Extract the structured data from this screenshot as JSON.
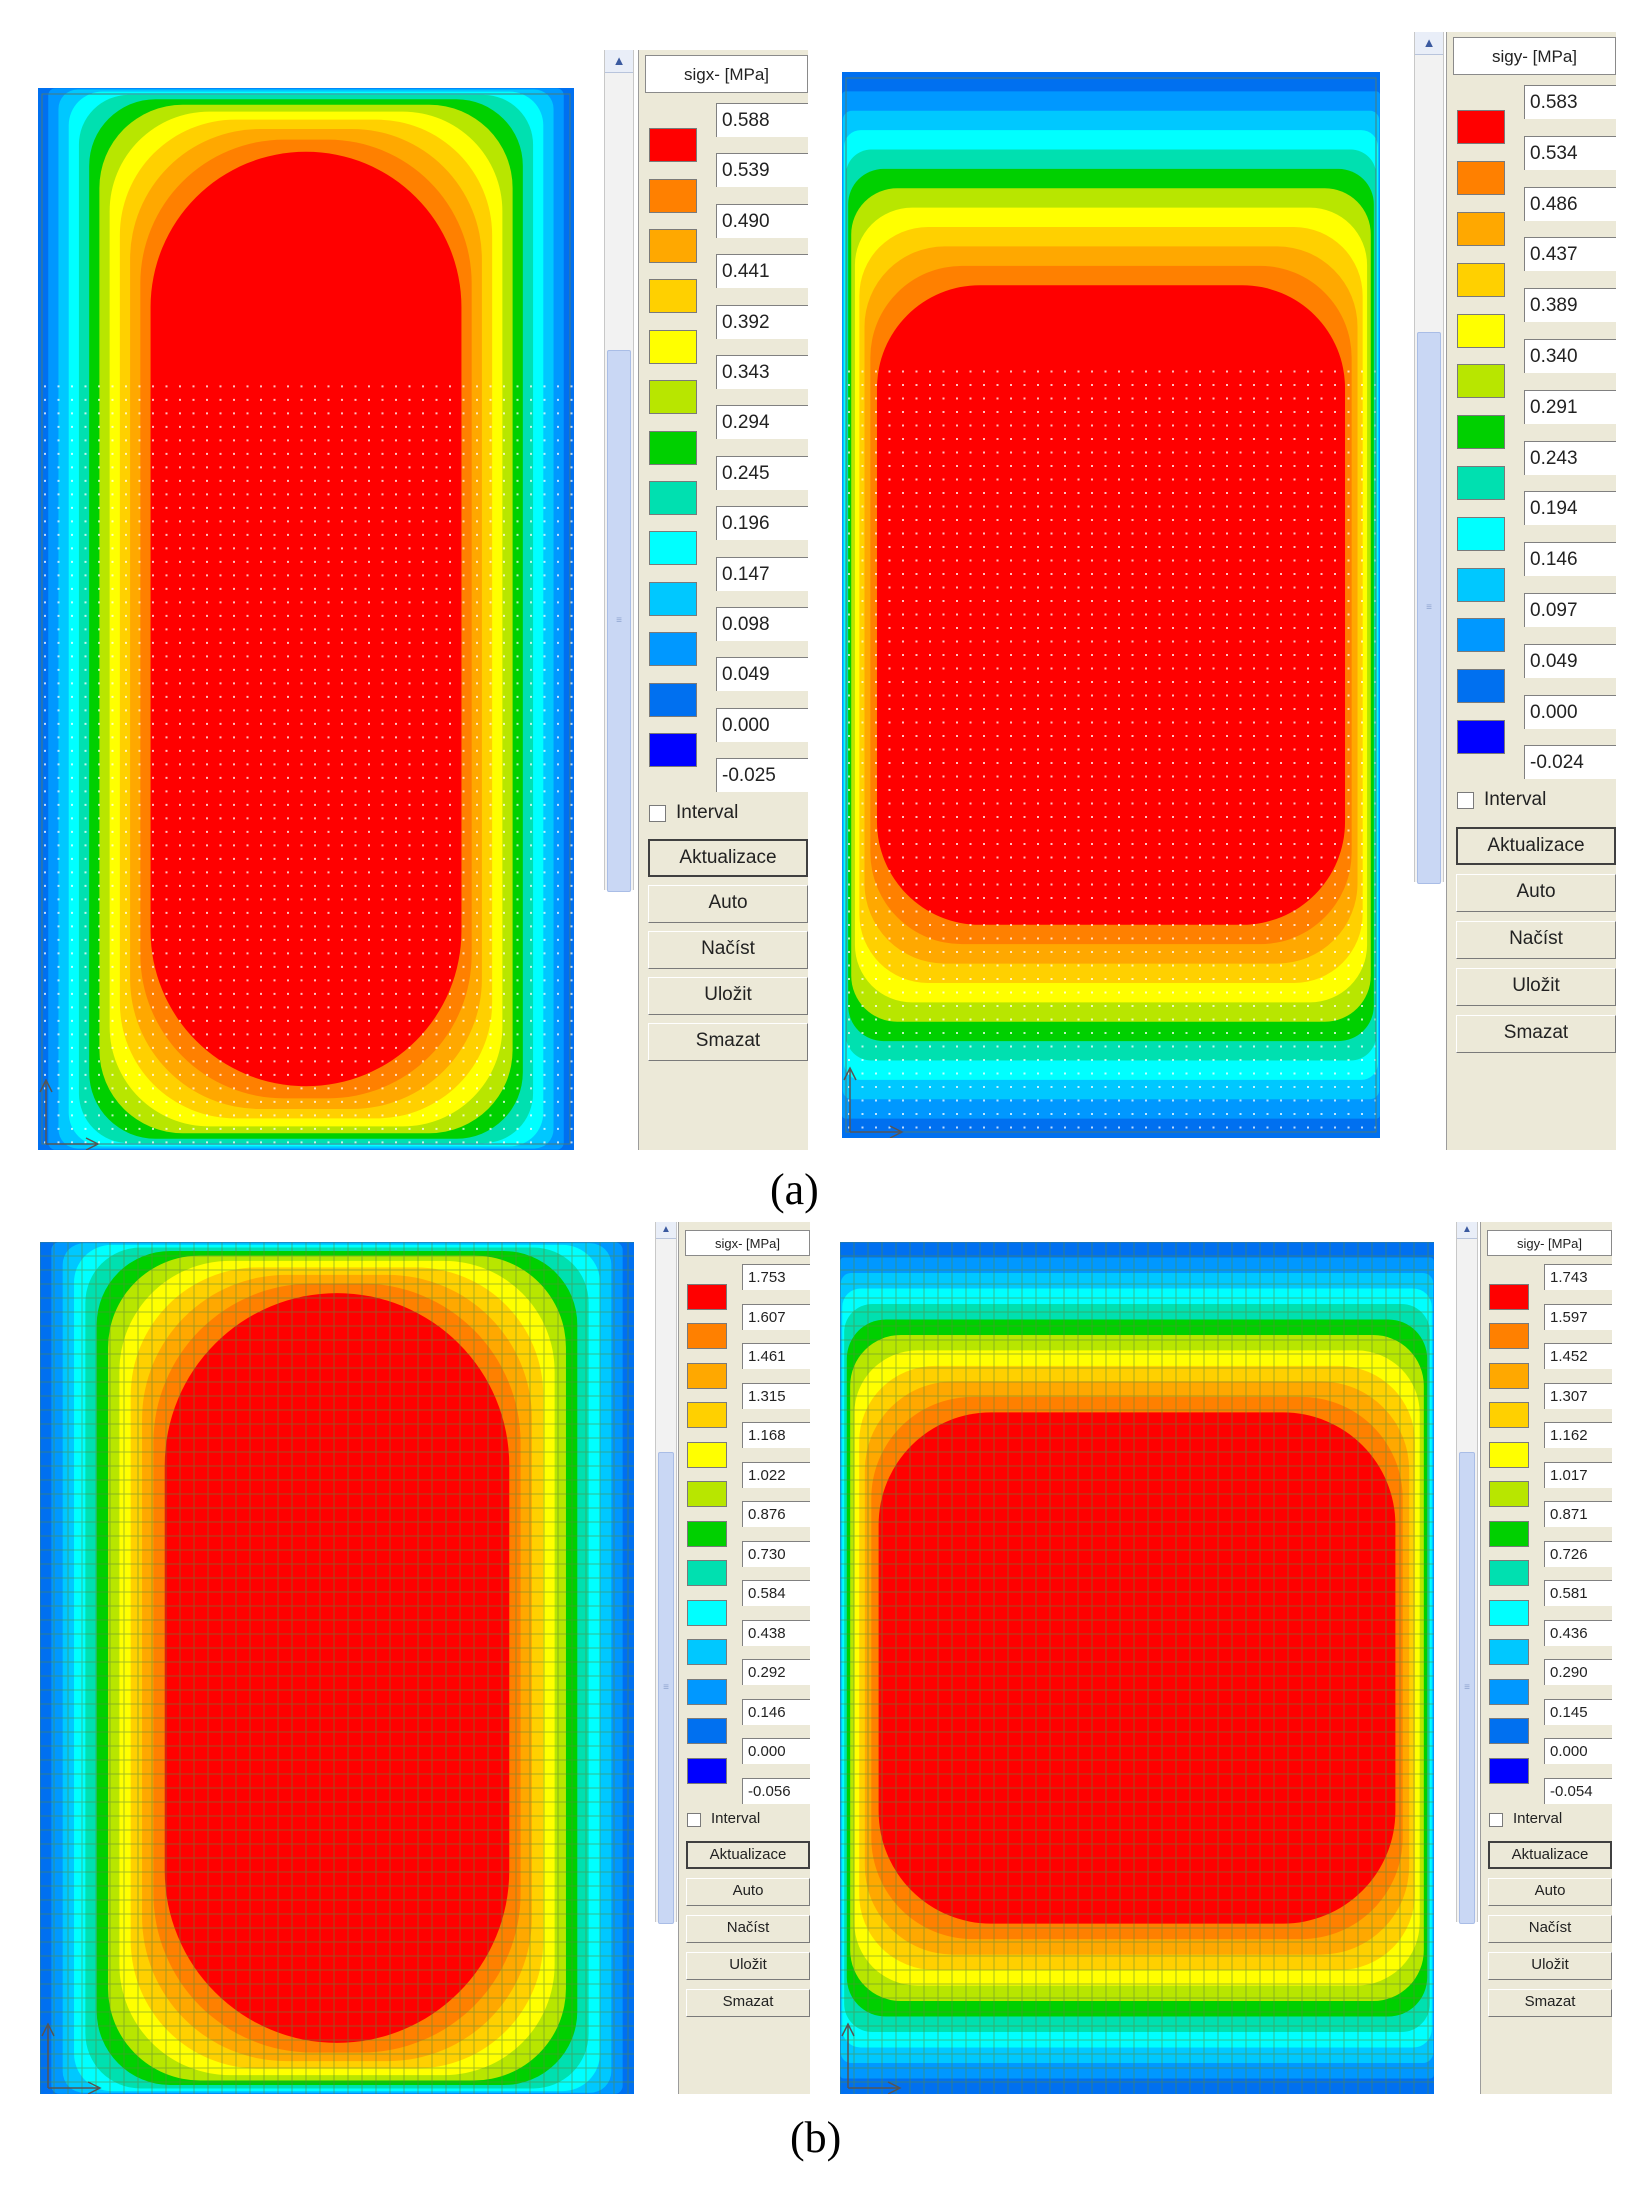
{
  "colors": {
    "scale": [
      "#ff0000",
      "#ff8000",
      "#ffa800",
      "#ffd000",
      "#ffff00",
      "#b8e600",
      "#00d000",
      "#00e0b0",
      "#00ffff",
      "#00c8ff",
      "#0098ff",
      "#0070f0",
      "#0000ff"
    ]
  },
  "panels": [
    {
      "id": "a-left",
      "orientation": "x",
      "mesh": "dots",
      "legend": {
        "header": "sigx- [MPa]",
        "values": [
          "0.588",
          "0.539",
          "0.490",
          "0.441",
          "0.392",
          "0.343",
          "0.294",
          "0.245",
          "0.196",
          "0.147",
          "0.098",
          "0.049",
          "0.000",
          "-0.025"
        ],
        "interval_label": "Interval",
        "buttons": [
          "Aktualizace",
          "Auto",
          "Načíst",
          "Uložit",
          "Smazat"
        ]
      }
    },
    {
      "id": "a-right",
      "orientation": "y",
      "mesh": "dots",
      "legend": {
        "header": "sigy- [MPa]",
        "values": [
          "0.583",
          "0.534",
          "0.486",
          "0.437",
          "0.389",
          "0.340",
          "0.291",
          "0.243",
          "0.194",
          "0.146",
          "0.097",
          "0.049",
          "0.000",
          "-0.024"
        ],
        "interval_label": "Interval",
        "buttons": [
          "Aktualizace",
          "Auto",
          "Načíst",
          "Uložit",
          "Smazat"
        ]
      }
    },
    {
      "id": "b-left",
      "orientation": "x",
      "mesh": "grid",
      "legend": {
        "header": "sigx- [MPa]",
        "values": [
          "1.753",
          "1.607",
          "1.461",
          "1.315",
          "1.168",
          "1.022",
          "0.876",
          "0.730",
          "0.584",
          "0.438",
          "0.292",
          "0.146",
          "0.000",
          "-0.056"
        ],
        "interval_label": "Interval",
        "buttons": [
          "Aktualizace",
          "Auto",
          "Načíst",
          "Uložit",
          "Smazat"
        ]
      }
    },
    {
      "id": "b-right",
      "orientation": "y",
      "mesh": "grid",
      "legend": {
        "header": "sigy- [MPa]",
        "values": [
          "1.743",
          "1.597",
          "1.452",
          "1.307",
          "1.162",
          "1.017",
          "0.871",
          "0.726",
          "0.581",
          "0.436",
          "0.290",
          "0.145",
          "0.000",
          "-0.054"
        ],
        "interval_label": "Interval",
        "buttons": [
          "Aktualizace",
          "Auto",
          "Načíst",
          "Uložit",
          "Smazat"
        ]
      }
    }
  ],
  "figure_labels": {
    "a": "(a)",
    "b": "(b)"
  }
}
